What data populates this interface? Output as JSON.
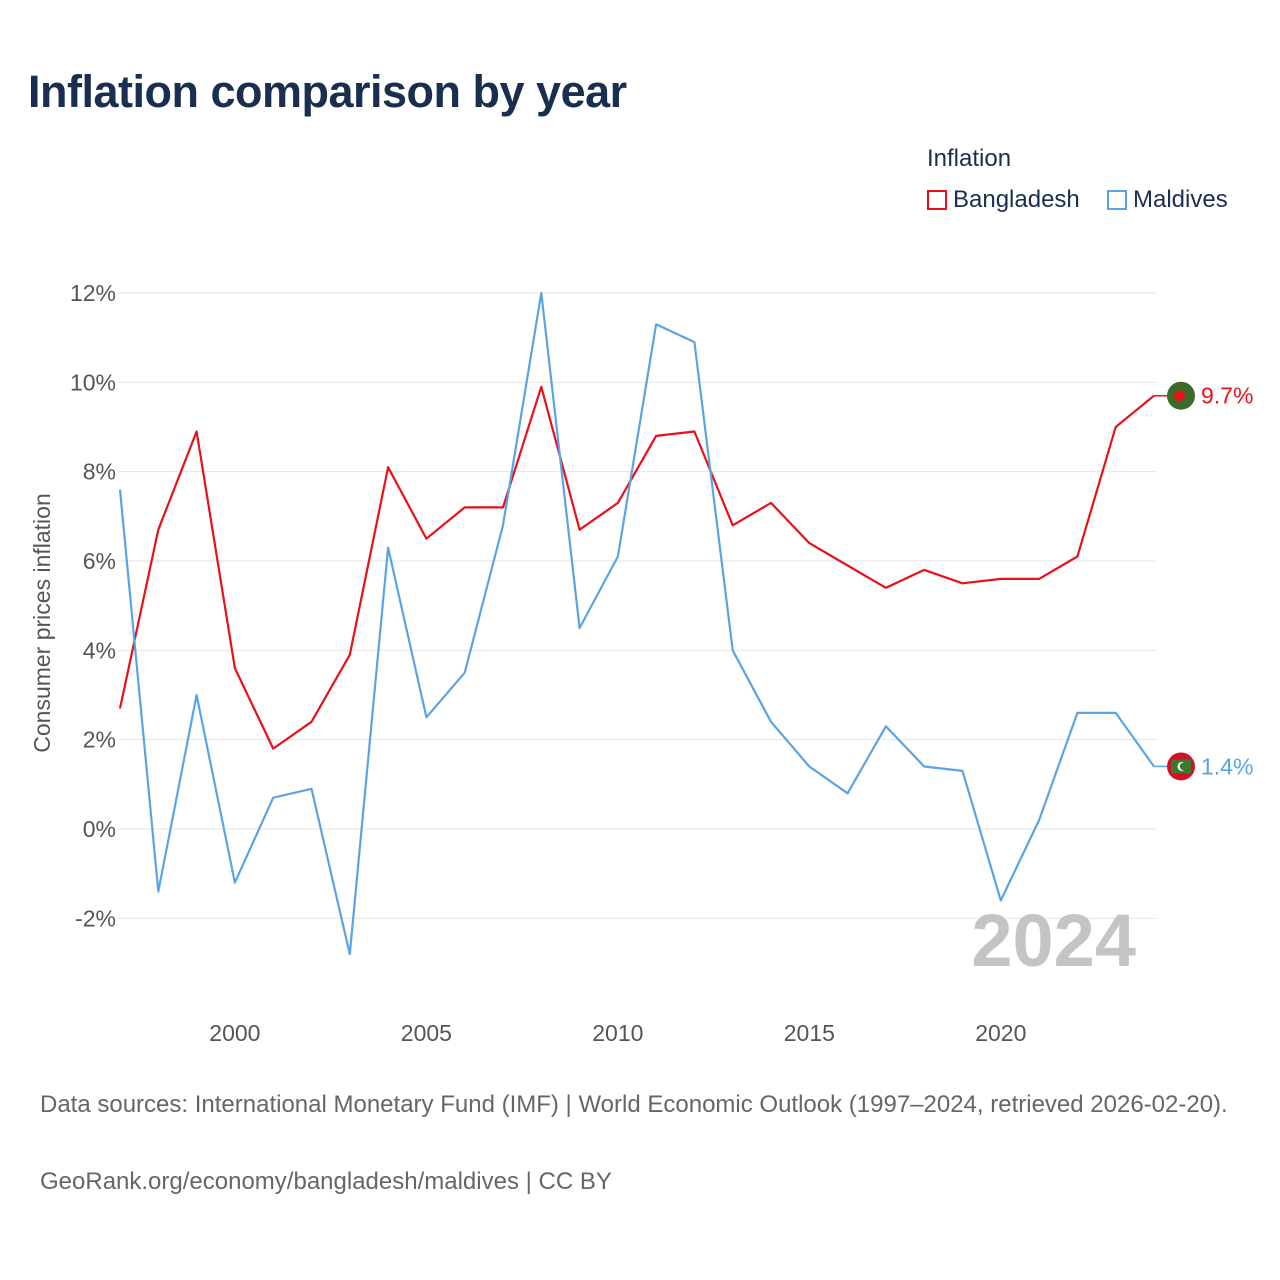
{
  "title": "Inflation comparison by year",
  "legend": {
    "title": "Inflation",
    "items": [
      {
        "label": "Bangladesh",
        "color": "#e8101a"
      },
      {
        "label": "Maldives",
        "color": "#5ba4e3"
      }
    ]
  },
  "chart_data": {
    "type": "line",
    "title": "Inflation comparison by year",
    "xlabel": "",
    "ylabel": "Consumer prices inflation",
    "x": [
      1997,
      1998,
      1999,
      2000,
      2001,
      2002,
      2003,
      2004,
      2005,
      2006,
      2007,
      2008,
      2009,
      2010,
      2011,
      2012,
      2013,
      2014,
      2015,
      2016,
      2017,
      2018,
      2019,
      2020,
      2021,
      2022,
      2023,
      2024
    ],
    "xlim": [
      1997,
      2024
    ],
    "ylim": [
      -3.5,
      12
    ],
    "yticks": [
      -2,
      0,
      2,
      4,
      6,
      8,
      10,
      12
    ],
    "ytick_labels": [
      "-2%",
      "0%",
      "2%",
      "4%",
      "6%",
      "8%",
      "10%",
      "12%"
    ],
    "xticks": [
      2000,
      2005,
      2010,
      2015,
      2020
    ],
    "xtick_labels": [
      "2000",
      "2005",
      "2010",
      "2015",
      "2020"
    ],
    "grid": true,
    "series": [
      {
        "name": "Bangladesh",
        "color": "#e8101a",
        "end_label": "9.7%",
        "values": [
          2.7,
          6.7,
          8.9,
          3.6,
          1.8,
          2.4,
          3.9,
          8.1,
          6.5,
          7.2,
          7.2,
          9.9,
          6.7,
          7.3,
          8.8,
          8.9,
          6.8,
          7.3,
          6.4,
          5.9,
          5.4,
          5.8,
          5.5,
          5.6,
          5.6,
          6.1,
          9.0,
          9.7
        ]
      },
      {
        "name": "Maldives",
        "color": "#5ba4e3",
        "end_label": "1.4%",
        "values": [
          7.6,
          -1.4,
          3.0,
          -1.2,
          0.7,
          0.9,
          -2.8,
          6.3,
          2.5,
          3.5,
          6.8,
          12.0,
          4.5,
          6.1,
          11.3,
          10.9,
          4.0,
          2.4,
          1.4,
          0.8,
          2.3,
          1.4,
          1.3,
          -1.6,
          0.2,
          2.6,
          2.6,
          1.4
        ]
      }
    ],
    "watermark_year": "2024"
  },
  "footer": {
    "sources": "Data sources: International Monetary Fund (IMF) | World Economic Outlook (1997–2024, retrieved 2026-02-20).",
    "url": "GeoRank.org/economy/bangladesh/maldives | CC BY"
  },
  "flags": {
    "bangladesh": {
      "icon": "bangladesh-flag-icon",
      "field": "#3a6b2a",
      "disc": "#e8101a"
    },
    "maldives": {
      "icon": "maldives-flag-icon",
      "field": "#3a7a2a",
      "border": "#d2102a",
      "crescent": "#ffffff"
    }
  }
}
